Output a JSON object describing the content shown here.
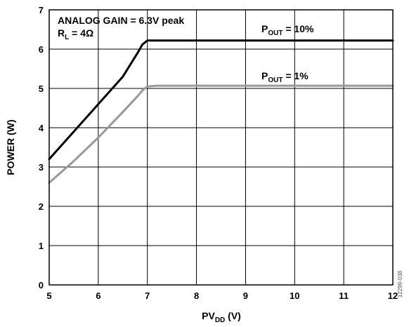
{
  "chart_data": {
    "type": "line",
    "xlabel": {
      "main": "PV",
      "sub": "DD",
      "unit": " (V)"
    },
    "ylabel": "POWER (W)",
    "xlim": [
      5,
      12
    ],
    "ylim": [
      0,
      7
    ],
    "xticks": [
      5,
      6,
      7,
      8,
      9,
      10,
      11,
      12
    ],
    "yticks": [
      0,
      1,
      2,
      3,
      4,
      5,
      6,
      7
    ],
    "grid": true,
    "annotations": {
      "line1": "ANALOG GAIN = 6.3V peak",
      "line2": {
        "main": "R",
        "sub": "L",
        "rest": " = 4Ω"
      }
    },
    "figure_id": "12299-038",
    "series": [
      {
        "name": {
          "main": "P",
          "sub": "OUT",
          "rest": " = 10%"
        },
        "color": "#000000",
        "x": [
          5.0,
          5.5,
          6.0,
          6.5,
          6.8,
          6.9,
          7.0,
          8.0,
          9.0,
          10.0,
          11.0,
          12.0
        ],
        "y": [
          3.2,
          3.9,
          4.6,
          5.3,
          5.9,
          6.12,
          6.22,
          6.22,
          6.22,
          6.22,
          6.22,
          6.22
        ]
      },
      {
        "name": {
          "main": "P",
          "sub": "OUT",
          "rest": " = 1%"
        },
        "color": "#999999",
        "x": [
          5.0,
          5.5,
          6.0,
          6.5,
          6.8,
          6.9,
          7.0,
          7.2,
          8.0,
          9.0,
          10.0,
          11.0,
          12.0
        ],
        "y": [
          2.6,
          3.15,
          3.75,
          4.4,
          4.8,
          4.95,
          5.05,
          5.07,
          5.07,
          5.07,
          5.07,
          5.07,
          5.07
        ]
      }
    ]
  }
}
